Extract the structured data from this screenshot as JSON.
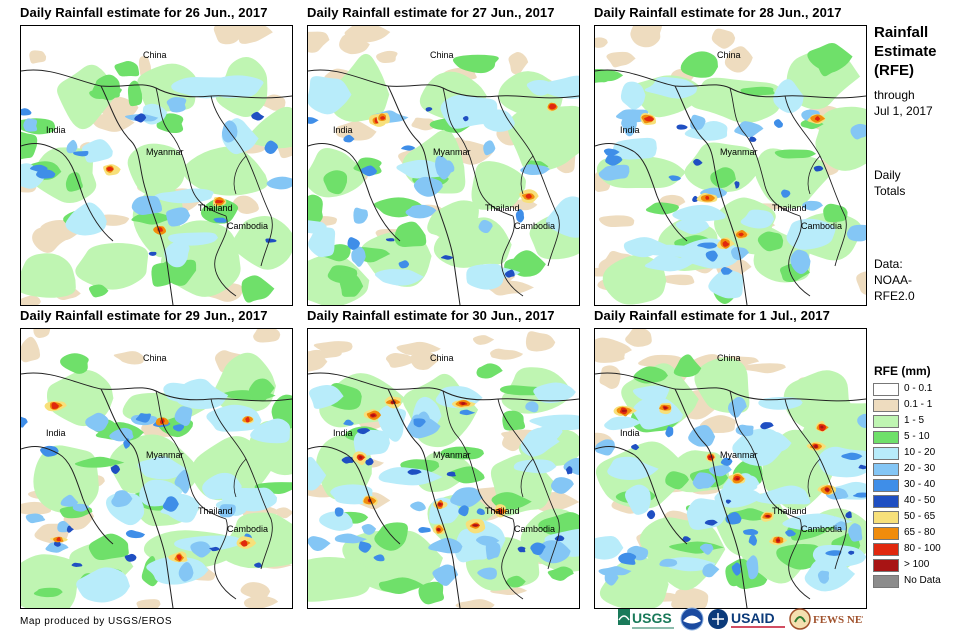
{
  "panels": [
    {
      "title": "Daily Rainfall estimate for 26 Jun., 2017"
    },
    {
      "title": "Daily Rainfall estimate for 27 Jun., 2017"
    },
    {
      "title": "Daily Rainfall estimate for 28 Jun., 2017"
    },
    {
      "title": "Daily Rainfall estimate for 29 Jun., 2017"
    },
    {
      "title": "Daily Rainfall estimate for 30 Jun., 2017"
    },
    {
      "title": "Daily Rainfall estimate for 1 Jul., 2017"
    }
  ],
  "place_labels": {
    "china": "China",
    "india": "India",
    "myanmar": "Myanmar",
    "thailand": "Thailand",
    "cambodia": "Cambodia"
  },
  "side": {
    "title_line1": "Rainfall",
    "title_line2": "Estimate",
    "title_line3": "(RFE)",
    "through_line1": "through",
    "through_line2": "Jul 1, 2017",
    "daily_line1": "Daily",
    "daily_line2": "Totals",
    "data_line1": "Data:",
    "data_line2": "NOAA-",
    "data_line3": "RFE2.0"
  },
  "legend": {
    "title": "RFE (mm)",
    "items": [
      {
        "label": "0 - 0.1",
        "color": "#ffffff"
      },
      {
        "label": "0.1 - 1",
        "color": "#eedcbf"
      },
      {
        "label": "1 - 5",
        "color": "#bff5b2"
      },
      {
        "label": "5 - 10",
        "color": "#6fe06a"
      },
      {
        "label": "10 - 20",
        "color": "#b8ecfa"
      },
      {
        "label": "20 - 30",
        "color": "#84c6f5"
      },
      {
        "label": "30 - 40",
        "color": "#3f8ee8"
      },
      {
        "label": "40 - 50",
        "color": "#1f4fc2"
      },
      {
        "label": "50 - 65",
        "color": "#f7e07a"
      },
      {
        "label": "65 - 80",
        "color": "#f08c0c"
      },
      {
        "label": "80 - 100",
        "color": "#e0280e"
      },
      {
        "label": "> 100",
        "color": "#a81414"
      },
      {
        "label": "No Data",
        "color": "#8c8c8c"
      }
    ]
  },
  "footer": {
    "credit": "Map produced by USGS/EROS"
  },
  "logos": {
    "usgs": "USGS",
    "usaid": "USAID",
    "fewsnet": "FEWS NET"
  },
  "icons": [
    "usgs-logo-icon",
    "noaa-logo-icon",
    "usaid-logo-icon",
    "fewsnet-logo-icon"
  ]
}
